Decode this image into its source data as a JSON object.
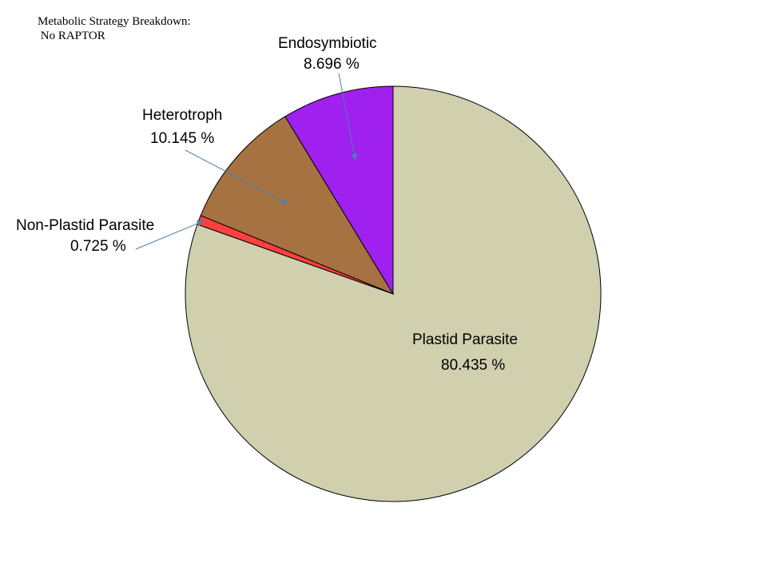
{
  "chart_data": {
    "type": "pie",
    "title": "Metabolic Strategy Breakdown:",
    "subtitle": "No RAPTOR",
    "slices": [
      {
        "name": "Plastid Parasite",
        "value": 80.435,
        "label": "80.435 %",
        "color": "#d0d0af"
      },
      {
        "name": "Non-Plastid Parasite",
        "value": 0.725,
        "label": "0.725 %",
        "color": "#ff4040"
      },
      {
        "name": "Heterotroph",
        "value": 10.145,
        "label": "10.145 %",
        "color": "#a67242"
      },
      {
        "name": "Endosymbiotic",
        "value": 8.696,
        "label": "8.696 %",
        "color": "#a020f0"
      }
    ],
    "start_angle_deg": 0,
    "direction": "clockwise",
    "legend": "none",
    "leader_line_color": "#4a7fb5"
  }
}
